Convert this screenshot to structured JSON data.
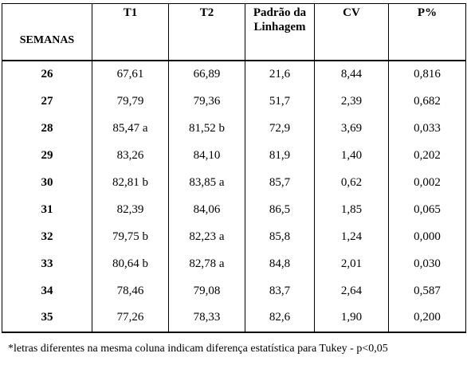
{
  "headers": [
    "SEMANAS",
    "T1",
    "T2",
    "Padrão da Linhagem",
    "CV",
    "P%"
  ],
  "rows": [
    [
      "26",
      "67,61",
      "66,89",
      "21,6",
      "8,44",
      "0,816"
    ],
    [
      "27",
      "79,79",
      "79,36",
      "51,7",
      "2,39",
      "0,682"
    ],
    [
      "28",
      "85,47 a",
      "81,52 b",
      "72,9",
      "3,69",
      "0,033"
    ],
    [
      "29",
      "83,26",
      "84,10",
      "81,9",
      "1,40",
      "0,202"
    ],
    [
      "30",
      "82,81 b",
      "83,85 a",
      "85,7",
      "0,62",
      "0,002"
    ],
    [
      "31",
      "82,39",
      "84,06",
      "86,5",
      "1,85",
      "0,065"
    ],
    [
      "32",
      "79,75 b",
      "82,23 a",
      "85,8",
      "1,24",
      "0,000"
    ],
    [
      "33",
      "80,64 b",
      "82,78 a",
      "84,8",
      "2,01",
      "0,030"
    ],
    [
      "34",
      "78,46",
      "79,08",
      "83,7",
      "2,64",
      "0,587"
    ],
    [
      "35",
      "77,26",
      "78,33",
      "82,6",
      "1,90",
      "0,200"
    ]
  ],
  "footnote": "*letras diferentes na mesma coluna indicam diferença estatística para Tukey - p<0,05"
}
